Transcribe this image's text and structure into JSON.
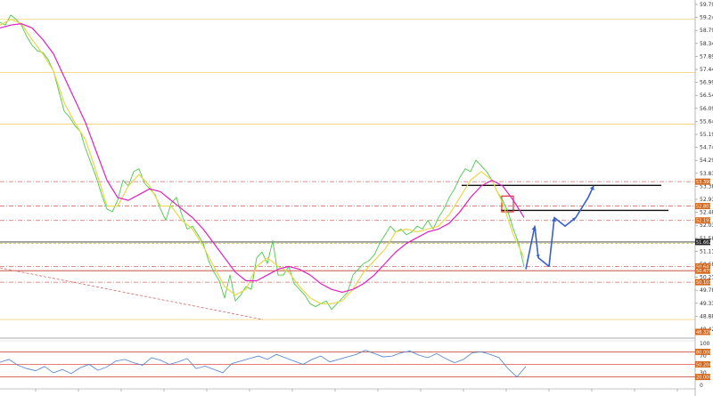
{
  "chart_data": [
    {
      "type": "line",
      "panel": "price",
      "title": "",
      "xlabel": "",
      "ylabel": "",
      "ylim": [
        48.35,
        59.75
      ],
      "grid": false,
      "legend": "none",
      "yticks": [
        "59.700",
        "59.240",
        "58.790",
        "58.340",
        "57.890",
        "57.440",
        "56.990",
        "56.540",
        "56.090",
        "55.640",
        "55.190",
        "54.740",
        "54.290",
        "53.830",
        "53.380",
        "52.930",
        "52.480",
        "52.030",
        "51.580",
        "51.130",
        "50.680",
        "50.230",
        "49.780",
        "49.330",
        "48.880",
        "48.425"
      ],
      "price_tags": [
        {
          "label": "53.390",
          "value": 53.55,
          "color": "#d2691e"
        },
        {
          "label": "52.801",
          "value": 52.7,
          "color": "#d2691e"
        },
        {
          "label": "52.193",
          "value": 52.2,
          "color": "#d2691e"
        },
        {
          "label": "51.662",
          "value": 51.45,
          "color": "#222222"
        },
        {
          "label": "50.647",
          "value": 50.6,
          "color": "#d2691e"
        },
        {
          "label": "50.479",
          "value": 50.45,
          "color": "#d2691e"
        },
        {
          "label": "50.101",
          "value": 50.05,
          "color": "#d2691e"
        },
        {
          "label": "48.326",
          "value": 48.32,
          "color": "#d2691e"
        }
      ],
      "horizontal_levels": [
        {
          "value": 59.2,
          "style": "solid",
          "color": "#f0d070"
        },
        {
          "value": 57.35,
          "style": "solid",
          "color": "#f0d070"
        },
        {
          "value": 55.55,
          "style": "solid",
          "color": "#f0d070"
        },
        {
          "value": 53.55,
          "style": "dashdot",
          "color": "#d26a6a"
        },
        {
          "value": 52.7,
          "style": "dashdot",
          "color": "#d26a6a"
        },
        {
          "value": 52.2,
          "style": "dashdot",
          "color": "#d26a6a"
        },
        {
          "value": 51.45,
          "style": "solid",
          "color": "#333333"
        },
        {
          "value": 51.4,
          "style": "dashed",
          "color": "#cccc66"
        },
        {
          "value": 50.6,
          "style": "dashdot",
          "color": "#d26a6a"
        },
        {
          "value": 50.45,
          "style": "solid",
          "color": "#c0392b"
        },
        {
          "value": 50.05,
          "style": "dashdot",
          "color": "#d26a6a"
        },
        {
          "value": 48.75,
          "style": "solid",
          "color": "#f0d070"
        }
      ],
      "series": [
        {
          "color": "#4cc94c",
          "x": [
            0,
            6,
            12,
            18,
            24,
            30,
            36,
            42,
            48,
            54,
            60,
            66,
            72,
            78,
            84,
            90,
            96,
            102,
            108,
            114,
            120,
            126,
            132,
            138,
            144,
            150,
            156,
            162,
            168,
            174,
            180,
            186,
            192,
            198,
            204,
            210,
            216,
            222,
            228,
            234,
            240,
            246,
            252,
            258,
            264,
            270,
            276,
            282,
            288,
            294,
            300,
            306,
            312,
            318,
            324,
            330,
            336,
            342,
            348,
            354,
            360,
            366,
            372,
            378,
            384,
            390,
            396,
            402,
            408,
            414,
            420,
            426,
            432,
            438,
            444,
            450,
            456,
            462,
            468,
            474,
            480,
            486,
            492,
            498,
            504,
            510,
            516,
            522,
            528,
            534,
            540,
            546,
            552,
            558,
            564,
            570,
            576,
            582,
            588
          ],
          "values": [
            59.1,
            59.0,
            59.35,
            59.2,
            59.0,
            58.6,
            58.3,
            58.1,
            58.05,
            57.8,
            57.4,
            56.7,
            56.0,
            55.8,
            55.5,
            55.3,
            54.7,
            54.2,
            53.7,
            53.1,
            52.6,
            52.5,
            52.9,
            53.6,
            53.4,
            53.9,
            54.0,
            53.5,
            53.3,
            53.1,
            52.6,
            52.2,
            52.8,
            53.0,
            52.4,
            51.9,
            52.0,
            51.7,
            51.4,
            50.8,
            50.4,
            50.1,
            49.5,
            50.3,
            49.4,
            49.6,
            49.9,
            49.8,
            50.9,
            51.1,
            50.7,
            51.5,
            50.3,
            50.3,
            50.6,
            50.0,
            49.8,
            49.6,
            49.3,
            49.2,
            49.3,
            49.4,
            49.1,
            49.3,
            49.5,
            49.7,
            50.3,
            50.5,
            50.7,
            50.8,
            51.0,
            51.4,
            51.7,
            52.0,
            51.8,
            51.9,
            51.7,
            51.8,
            52.0,
            51.9,
            52.2,
            51.9,
            52.3,
            52.6,
            53.0,
            53.3,
            53.7,
            54.0,
            53.9,
            54.3,
            54.1,
            53.9,
            53.6,
            53.2,
            52.9,
            52.5,
            51.9,
            51.4,
            50.6
          ]
        },
        {
          "color": "#e6d84a",
          "x": [
            0,
            12,
            24,
            36,
            48,
            60,
            72,
            84,
            96,
            108,
            120,
            132,
            144,
            156,
            168,
            180,
            192,
            204,
            216,
            228,
            240,
            252,
            264,
            276,
            288,
            300,
            312,
            324,
            336,
            348,
            360,
            372,
            384,
            396,
            408,
            420,
            432,
            444,
            456,
            468,
            480,
            492,
            504,
            516,
            528,
            540,
            552,
            564,
            576,
            588
          ],
          "values": [
            59.0,
            59.2,
            59.05,
            58.5,
            58.0,
            57.4,
            56.3,
            55.6,
            55.0,
            53.9,
            52.7,
            52.7,
            53.4,
            53.8,
            53.4,
            52.7,
            52.7,
            52.2,
            51.9,
            51.3,
            50.6,
            49.9,
            49.6,
            49.8,
            50.6,
            50.9,
            50.6,
            50.4,
            49.9,
            49.5,
            49.3,
            49.3,
            49.4,
            49.8,
            50.4,
            50.8,
            51.2,
            51.8,
            51.9,
            51.8,
            51.9,
            52.0,
            52.4,
            53.0,
            53.6,
            53.9,
            53.6,
            52.8,
            51.7,
            50.9
          ]
        },
        {
          "color": "#e020c0",
          "x": [
            0,
            12,
            24,
            36,
            48,
            60,
            72,
            84,
            96,
            108,
            120,
            132,
            144,
            156,
            168,
            180,
            192,
            204,
            216,
            228,
            240,
            252,
            264,
            276,
            288,
            300,
            312,
            324,
            336,
            348,
            360,
            372,
            384,
            396,
            408,
            420,
            432,
            444,
            456,
            468,
            480,
            492,
            504,
            516,
            528,
            540,
            552,
            564,
            576,
            588
          ],
          "values": [
            58.9,
            59.0,
            59.05,
            58.9,
            58.5,
            58.0,
            57.2,
            56.4,
            55.6,
            54.6,
            53.6,
            53.0,
            52.9,
            53.1,
            53.3,
            53.2,
            52.9,
            52.6,
            52.3,
            51.9,
            51.4,
            50.9,
            50.4,
            50.1,
            50.1,
            50.3,
            50.5,
            50.6,
            50.5,
            50.3,
            50.0,
            49.8,
            49.7,
            49.8,
            50.0,
            50.3,
            50.7,
            51.1,
            51.4,
            51.6,
            51.8,
            51.9,
            52.1,
            52.5,
            53.0,
            53.4,
            53.6,
            53.4,
            52.9,
            52.3
          ]
        },
        {
          "color": "#3a5fcd",
          "x": [
            590,
            600,
            604,
            616,
            622,
            634,
            646,
            660,
            666
          ],
          "values": [
            50.5,
            52.0,
            50.9,
            50.6,
            52.3,
            52.0,
            52.3,
            53.0,
            53.4
          ],
          "style": "projection"
        }
      ],
      "trend_lines": [
        {
          "x": [
            0,
            295
          ],
          "values": [
            50.55,
            48.75
          ],
          "color": "#d26a6a",
          "style": "dashed"
        },
        {
          "x": [
            518,
            742
          ],
          "values": [
            53.42,
            53.42
          ],
          "color": "#111111",
          "style": "solid"
        },
        {
          "x": [
            562,
            750
          ],
          "values": [
            52.55,
            52.55
          ],
          "color": "#111111",
          "style": "solid"
        }
      ],
      "zones": [
        {
          "x": [
            563,
            576
          ],
          "values": [
            53.05,
            52.5
          ],
          "color": "#e03030"
        }
      ]
    },
    {
      "type": "line",
      "panel": "oscillator",
      "title": "",
      "ylim": [
        0,
        100
      ],
      "yticks": [
        "100",
        "70",
        "50",
        "30",
        "0"
      ],
      "price_tags": [
        {
          "label": "80.0000",
          "value": 80,
          "color": "#d2691e"
        },
        {
          "label": "50.2041",
          "value": 50.2,
          "color": "#d2691e"
        },
        {
          "label": "20.0000",
          "value": 20,
          "color": "#d2691e"
        }
      ],
      "levels": [
        80,
        50,
        20
      ],
      "series": [
        {
          "color": "#4a7fd4",
          "x": [
            0,
            10,
            20,
            30,
            40,
            50,
            60,
            70,
            80,
            90,
            100,
            110,
            120,
            130,
            140,
            150,
            160,
            170,
            180,
            190,
            200,
            210,
            220,
            230,
            240,
            250,
            260,
            270,
            280,
            290,
            300,
            310,
            320,
            330,
            340,
            350,
            360,
            370,
            380,
            390,
            400,
            410,
            420,
            430,
            440,
            450,
            460,
            470,
            480,
            490,
            500,
            510,
            520,
            530,
            540,
            550,
            560,
            570,
            580,
            590
          ],
          "values": [
            55,
            62,
            48,
            40,
            35,
            45,
            30,
            38,
            28,
            42,
            50,
            36,
            44,
            58,
            62,
            54,
            48,
            66,
            60,
            50,
            56,
            64,
            40,
            46,
            38,
            30,
            52,
            58,
            64,
            70,
            62,
            74,
            66,
            58,
            50,
            62,
            70,
            56,
            62,
            68,
            74,
            84,
            76,
            68,
            70,
            78,
            82,
            72,
            66,
            76,
            64,
            54,
            62,
            78,
            80,
            74,
            66,
            40,
            20,
            45
          ]
        }
      ]
    }
  ]
}
